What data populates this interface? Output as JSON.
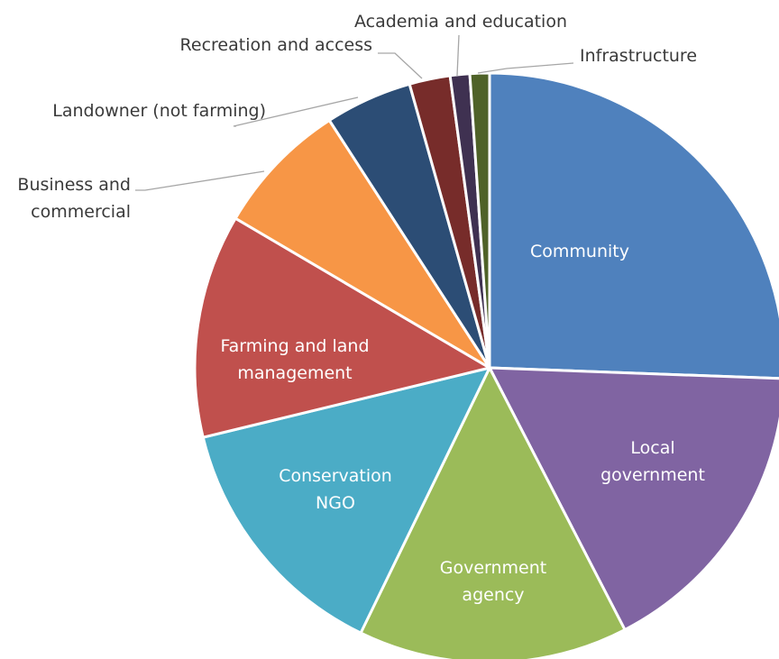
{
  "chart_data": {
    "type": "pie",
    "title": "",
    "slices": [
      {
        "label": "Community",
        "value": 26.3,
        "color": "#4f81bd"
      },
      {
        "label": "Local government",
        "value": 17.3,
        "color": "#8064a2"
      },
      {
        "label": "Government agency",
        "value": 15.2,
        "color": "#9bbb59"
      },
      {
        "label": "Conservation NGO",
        "value": 14.4,
        "color": "#4bacc6"
      },
      {
        "label": "Farming and land management",
        "value": 12.6,
        "color": "#c0504d"
      },
      {
        "label": "Business and commercial",
        "value": 7.6,
        "color": "#f79646"
      },
      {
        "label": "Landowner (not farming)",
        "value": 4.9,
        "color": "#2c4d75"
      },
      {
        "label": "Recreation and access",
        "value": 2.3,
        "color": "#772c2a"
      },
      {
        "label": "Academia and education",
        "value": 1.1,
        "color": "#3f3151"
      },
      {
        "label": "Infrastructure",
        "value": 1.1,
        "color": "#4f6228"
      }
    ]
  },
  "labels": {
    "inside": [
      {
        "lines": [
          "Community"
        ]
      },
      {
        "lines": [
          "Local",
          "government"
        ]
      },
      {
        "lines": [
          "Government",
          "agency"
        ]
      },
      {
        "lines": [
          "Conservation",
          "NGO"
        ]
      },
      {
        "lines": [
          "Farming and land",
          "management"
        ]
      }
    ],
    "outside": [
      {
        "lines": [
          "Business and",
          "commercial"
        ]
      },
      {
        "lines": [
          "Landowner (not farming)"
        ]
      },
      {
        "lines": [
          "Recreation and access"
        ]
      },
      {
        "lines": [
          "Academia and education"
        ]
      },
      {
        "lines": [
          "Infrastructure"
        ]
      }
    ]
  }
}
